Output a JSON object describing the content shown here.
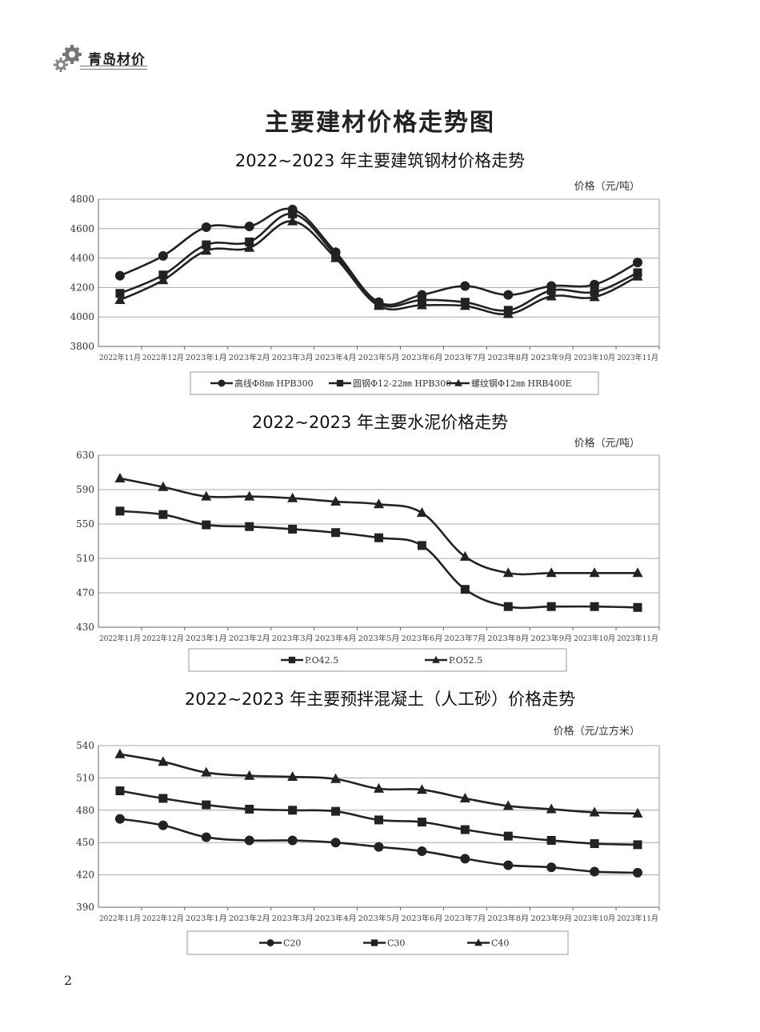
{
  "header": {
    "logo_text": "青岛材价",
    "icon": "gears-icon"
  },
  "page_title": "主要建材价格走势图",
  "page_number": "2",
  "chart_data": [
    {
      "type": "line",
      "title": "2022~2023 年主要建筑钢材价格走势",
      "unit_label": "价格（元/吨）",
      "ylim": [
        3800,
        4800
      ],
      "yticks": [
        3800,
        4000,
        4200,
        4400,
        4600,
        4800
      ],
      "grid": true,
      "legend": "bottom",
      "categories": [
        "2022年11月",
        "2022年12月",
        "2023年1月",
        "2023年2月",
        "2023年3月",
        "2023年4月",
        "2023年5月",
        "2023年6月",
        "2023年7月",
        "2023年8月",
        "2023年9月",
        "2023年10月",
        "2023年11月"
      ],
      "series": [
        {
          "name": "高线Φ8㎜ HPB300",
          "marker": "circle",
          "values": [
            4280,
            4415,
            4610,
            4615,
            4730,
            4440,
            4100,
            4150,
            4210,
            4150,
            4210,
            4220,
            4370
          ]
        },
        {
          "name": "圆钢Φ12-22㎜ HPB300",
          "marker": "square",
          "values": [
            4160,
            4285,
            4490,
            4510,
            4700,
            4420,
            4090,
            4115,
            4100,
            4045,
            4180,
            4170,
            4300
          ]
        },
        {
          "name": "螺纹钢Φ12㎜ HRB400E",
          "marker": "triangle",
          "values": [
            4115,
            4250,
            4450,
            4470,
            4650,
            4400,
            4075,
            4080,
            4075,
            4020,
            4140,
            4135,
            4275
          ]
        }
      ]
    },
    {
      "type": "line",
      "title": "2022~2023 年主要水泥价格走势",
      "unit_label": "价格（元/吨）",
      "ylim": [
        430,
        630
      ],
      "yticks": [
        430,
        470,
        510,
        550,
        590,
        630
      ],
      "grid": true,
      "legend": "bottom",
      "categories": [
        "2022年11月",
        "2022年12月",
        "2023年1月",
        "2023年2月",
        "2023年3月",
        "2023年4月",
        "2023年5月",
        "2023年6月",
        "2023年7月",
        "2023年8月",
        "2023年9月",
        "2023年10月",
        "2023年11月"
      ],
      "series": [
        {
          "name": "P.O42.5",
          "marker": "square",
          "values": [
            565,
            561,
            549,
            547,
            544,
            540,
            534,
            525,
            474,
            454,
            454,
            454,
            453
          ]
        },
        {
          "name": "P.O52.5",
          "marker": "triangle",
          "values": [
            603,
            593,
            582,
            582,
            580,
            576,
            573,
            563,
            512,
            493,
            493,
            493,
            493
          ]
        }
      ]
    },
    {
      "type": "line",
      "title": "2022~2023 年主要预拌混凝土（人工砂）价格走势",
      "unit_label": "价格（元/立方米）",
      "ylim": [
        390,
        540
      ],
      "yticks": [
        390,
        420,
        450,
        480,
        510,
        540
      ],
      "grid": true,
      "legend": "bottom",
      "categories": [
        "2022年11月",
        "2022年12月",
        "2023年1月",
        "2023年2月",
        "2023年3月",
        "2023年4月",
        "2023年5月",
        "2023年6月",
        "2023年7月",
        "2023年8月",
        "2023年9月",
        "2023年10月",
        "2023年11月"
      ],
      "series": [
        {
          "name": "C20",
          "marker": "circle",
          "values": [
            472,
            466,
            455,
            452,
            452,
            450,
            446,
            442,
            435,
            429,
            427,
            423,
            422
          ]
        },
        {
          "name": "C30",
          "marker": "square",
          "values": [
            498,
            491,
            485,
            481,
            480,
            479,
            471,
            469,
            462,
            456,
            452,
            449,
            448
          ]
        },
        {
          "name": "C40",
          "marker": "triangle",
          "values": [
            532,
            525,
            515,
            512,
            511,
            509,
            500,
            499,
            491,
            484,
            481,
            478,
            477
          ]
        }
      ]
    }
  ]
}
